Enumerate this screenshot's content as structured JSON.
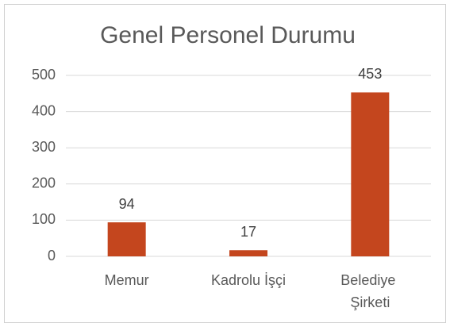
{
  "chart_data": {
    "type": "bar",
    "title": "Genel Personel Durumu",
    "categories": [
      "Memur",
      "Kadrolu İşçi",
      "Belediye Şirketi"
    ],
    "values": [
      94,
      17,
      453
    ],
    "color": "#c4461e",
    "ylim": [
      0,
      500
    ],
    "yticks": [
      0,
      100,
      200,
      300,
      400,
      500
    ],
    "grid": true
  }
}
